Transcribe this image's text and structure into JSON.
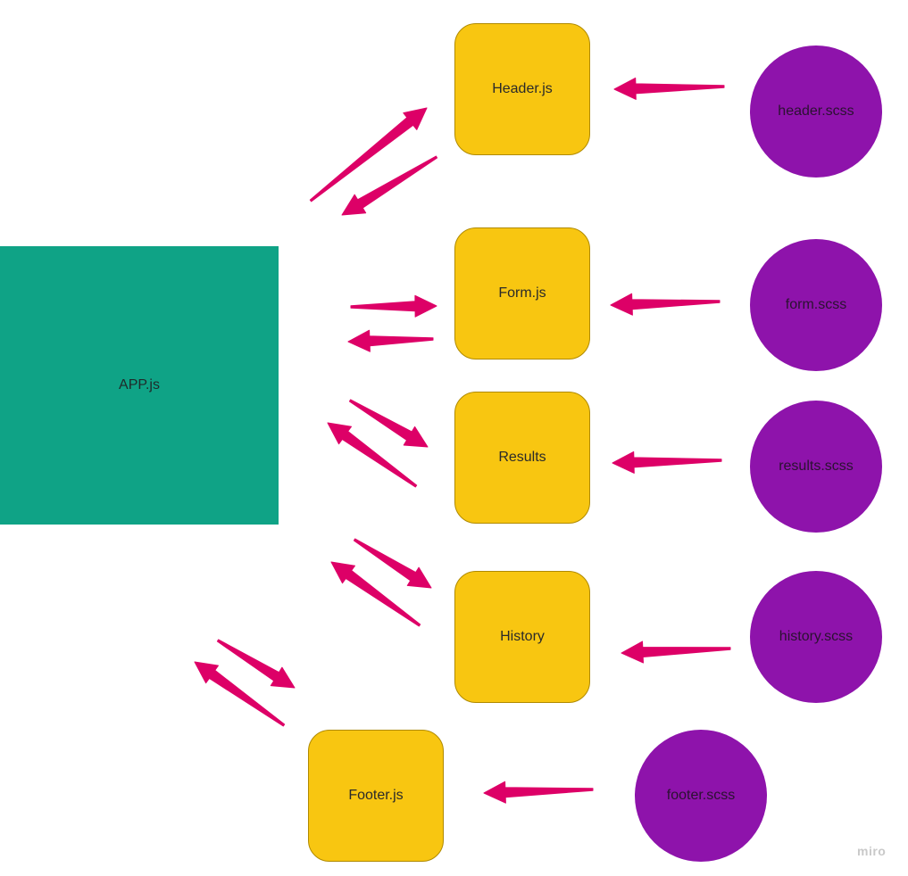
{
  "colors": {
    "app": "#0fa386",
    "component": "#f8c611",
    "style": "#8e13ab",
    "arrow": "#dd0067"
  },
  "app": {
    "label": "APP.js"
  },
  "components": [
    {
      "id": "header",
      "label": "Header.js"
    },
    {
      "id": "form",
      "label": "Form.js"
    },
    {
      "id": "results",
      "label": "Results"
    },
    {
      "id": "history",
      "label": "History"
    },
    {
      "id": "footer",
      "label": "Footer.js"
    }
  ],
  "styles": [
    {
      "id": "header",
      "label": "header.scss"
    },
    {
      "id": "form",
      "label": "form.scss"
    },
    {
      "id": "results",
      "label": "results.scss"
    },
    {
      "id": "history",
      "label": "history.scss"
    },
    {
      "id": "footer",
      "label": "footer.scss"
    }
  ],
  "watermark": "miro"
}
